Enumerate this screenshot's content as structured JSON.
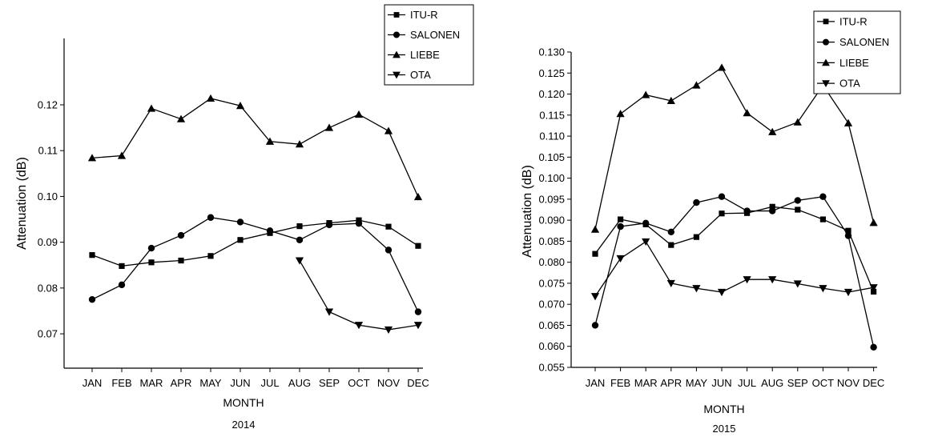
{
  "chart_data": [
    {
      "type": "line",
      "xlabel": "MONTH",
      "subtitle": "2014",
      "ylabel": "Attenuation (dB)",
      "categories": [
        "JAN",
        "FEB",
        "MAR",
        "APR",
        "MAY",
        "JUN",
        "JUL",
        "AUG",
        "SEP",
        "OCT",
        "NOV",
        "DEC"
      ],
      "ylim": [
        0.0625,
        0.1345
      ],
      "yticks": [
        "0.07",
        "0.08",
        "0.09",
        "0.10",
        "0.11",
        "0.12"
      ],
      "legend_position": "top-right",
      "series": [
        {
          "name": "ITU-R",
          "marker": "square",
          "values": [
            0.0872,
            0.0848,
            0.0856,
            0.086,
            0.087,
            0.0905,
            0.092,
            0.0935,
            0.0942,
            0.0948,
            0.0934,
            0.0892
          ]
        },
        {
          "name": "SALONEN",
          "marker": "circle",
          "values": [
            0.0775,
            0.0807,
            0.0887,
            0.0915,
            0.0954,
            0.0944,
            0.0925,
            0.0905,
            0.0938,
            0.0941,
            0.0883,
            0.0748
          ]
        },
        {
          "name": "LIEBE",
          "marker": "triangle-up",
          "values": [
            0.1084,
            0.1089,
            0.1192,
            0.1169,
            0.1214,
            0.1198,
            0.112,
            0.1114,
            0.115,
            0.1179,
            0.1143,
            0.0999
          ]
        },
        {
          "name": "OTA",
          "marker": "triangle-down",
          "values": [
            null,
            null,
            null,
            null,
            null,
            null,
            null,
            0.086,
            0.0748,
            0.0719,
            0.0709,
            0.0719
          ]
        }
      ]
    },
    {
      "type": "line",
      "xlabel": "MONTH",
      "subtitle": "2015",
      "ylabel": "Attenuation (dB)",
      "categories": [
        "JAN",
        "FEB",
        "MAR",
        "APR",
        "MAY",
        "JUN",
        "JUL",
        "AUG",
        "SEP",
        "OCT",
        "NOV",
        "DEC"
      ],
      "ylim": [
        0.055,
        0.13
      ],
      "yticks": [
        "0.055",
        "0.060",
        "0.065",
        "0.070",
        "0.075",
        "0.080",
        "0.085",
        "0.090",
        "0.095",
        "0.100",
        "0.105",
        "0.110",
        "0.115",
        "0.120",
        "0.125",
        "0.130"
      ],
      "legend_position": "top-right",
      "series": [
        {
          "name": "ITU-R",
          "marker": "square",
          "values": [
            0.082,
            0.0902,
            0.089,
            0.0841,
            0.086,
            0.0916,
            0.0917,
            0.0932,
            0.0925,
            0.0902,
            0.0875,
            0.073
          ]
        },
        {
          "name": "SALONEN",
          "marker": "circle",
          "values": [
            0.065,
            0.0885,
            0.0893,
            0.0872,
            0.0942,
            0.0956,
            0.0922,
            0.0922,
            0.0947,
            0.0956,
            0.0863,
            0.0598
          ]
        },
        {
          "name": "LIEBE",
          "marker": "triangle-up",
          "values": [
            0.0878,
            0.1153,
            0.1198,
            0.1184,
            0.1221,
            0.1263,
            0.1155,
            0.111,
            0.1133,
            0.1221,
            0.1131,
            0.0894
          ]
        },
        {
          "name": "OTA",
          "marker": "triangle-down",
          "values": [
            0.0719,
            0.0809,
            0.0849,
            0.075,
            0.0738,
            0.0729,
            0.0759,
            0.0759,
            0.0749,
            0.0738,
            0.0729,
            0.074
          ]
        }
      ]
    }
  ]
}
